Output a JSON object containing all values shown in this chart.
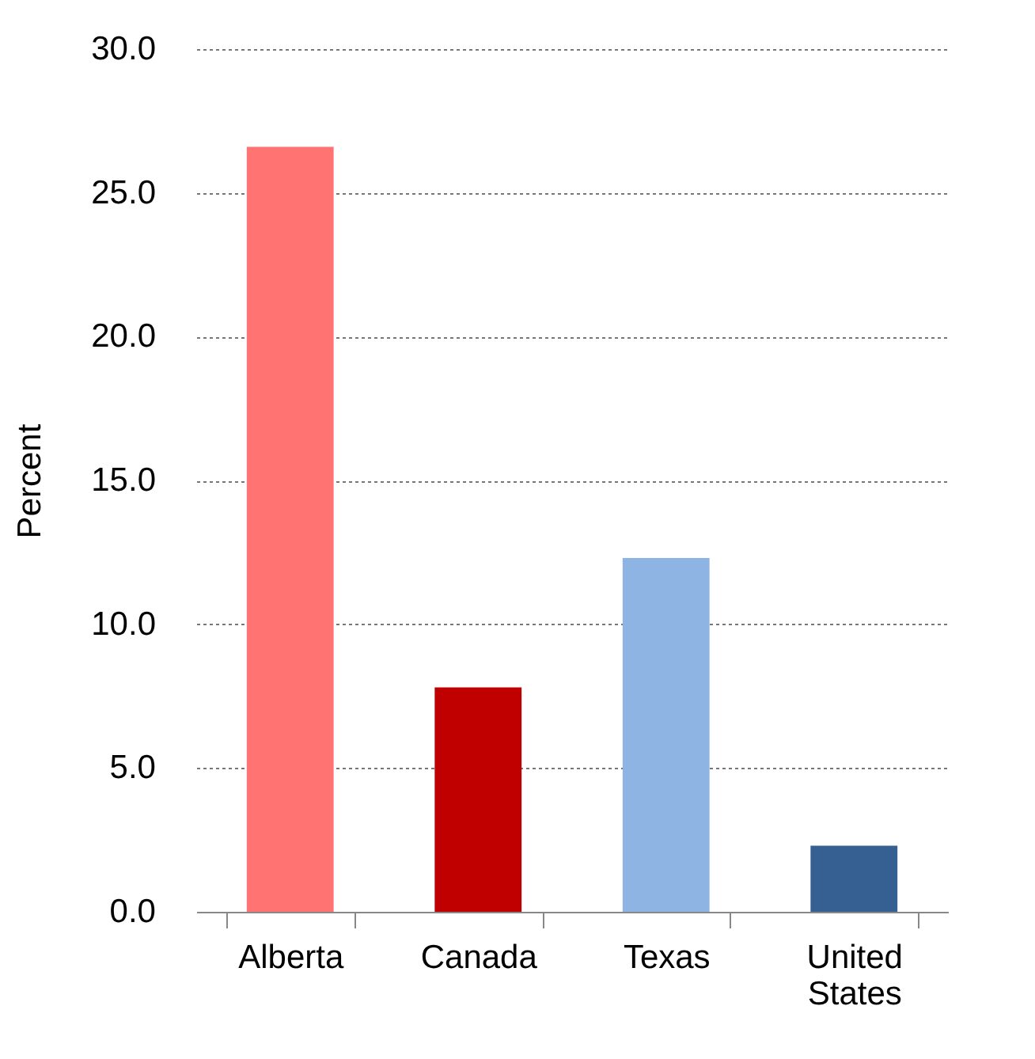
{
  "chart_data": {
    "type": "bar",
    "ylabel": "Percent",
    "categories": [
      "Alberta",
      "Canada",
      "Texas",
      "United States"
    ],
    "values": [
      26.6,
      7.8,
      12.3,
      2.3
    ],
    "colors": [
      "#ff7373",
      "#c00000",
      "#8eb4e3",
      "#376092"
    ],
    "ylim": [
      0,
      30
    ],
    "yticks": [
      {
        "value": 0,
        "label": "0.0"
      },
      {
        "value": 5,
        "label": "5.0"
      },
      {
        "value": 10,
        "label": "10.0"
      },
      {
        "value": 15,
        "label": "15.0"
      },
      {
        "value": 20,
        "label": "20.0"
      },
      {
        "value": 25,
        "label": "25.0"
      },
      {
        "value": 30,
        "label": "30.0"
      }
    ],
    "grid": "y",
    "legend": false
  }
}
